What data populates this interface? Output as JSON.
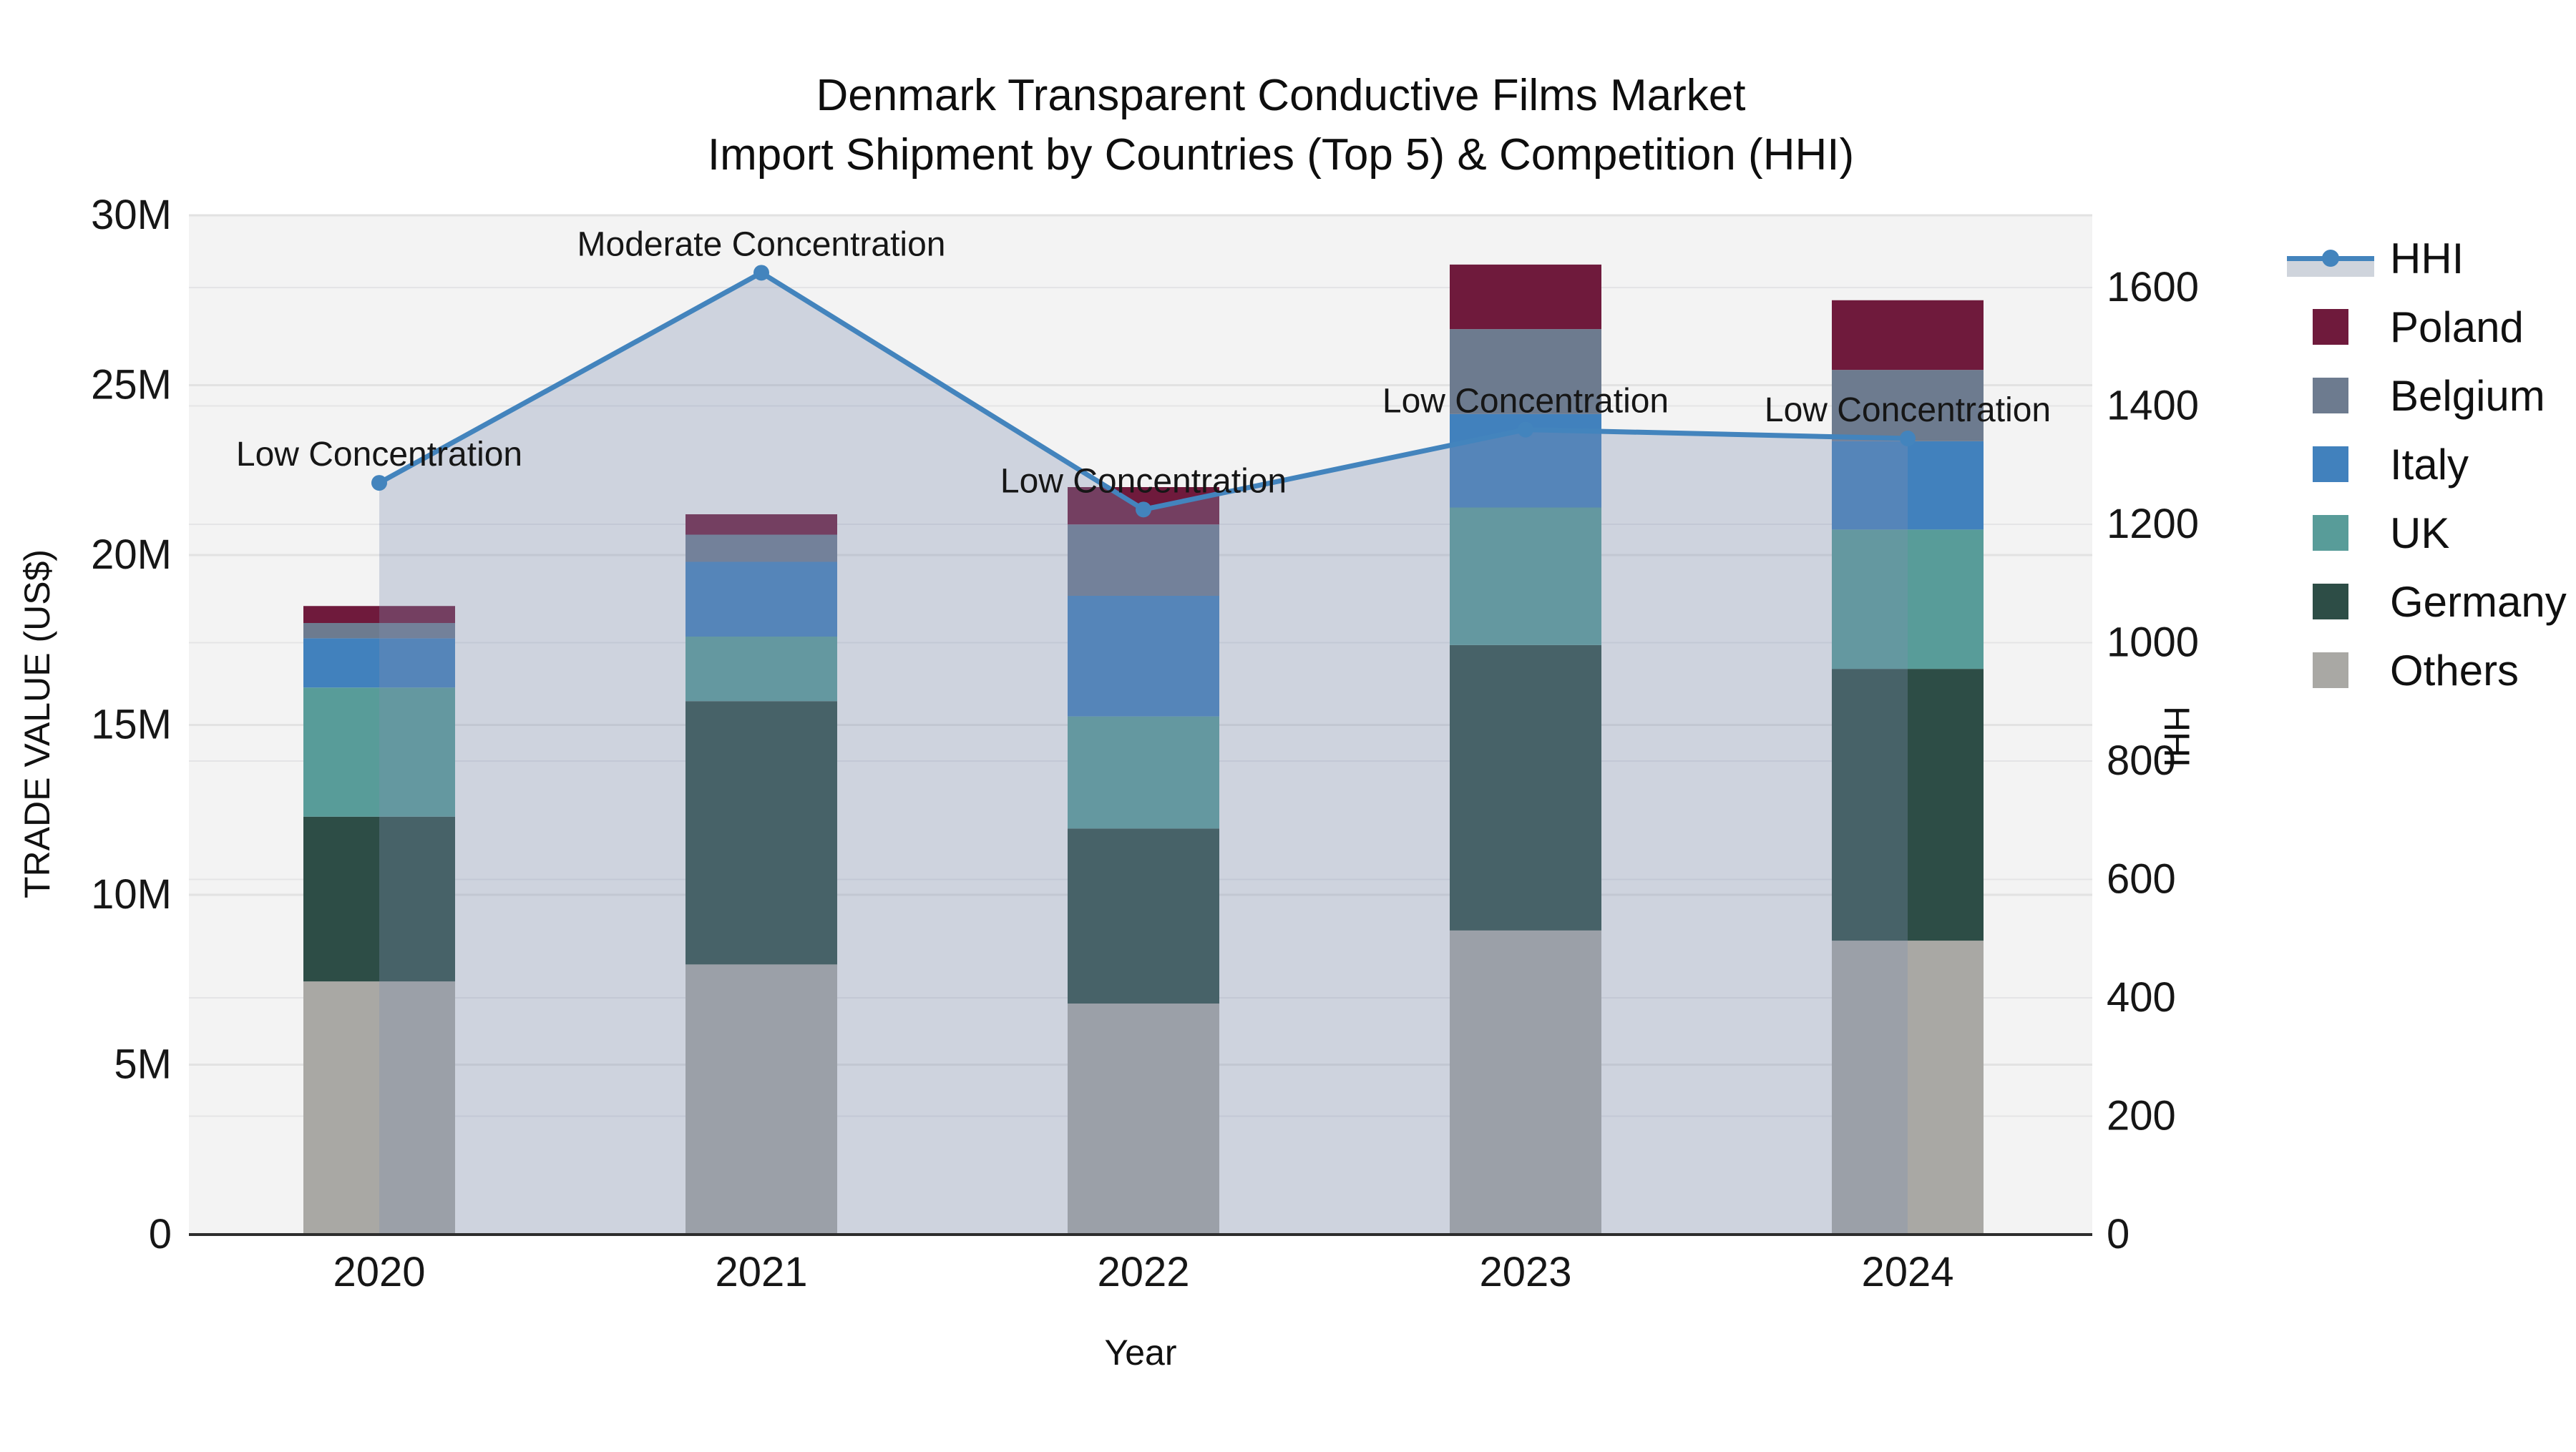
{
  "title": {
    "line1": "Denmark Transparent Conductive Films Market",
    "line2": "Import Shipment by Countries (Top 5) & Competition (HHI)"
  },
  "axes": {
    "x": {
      "title": "Year",
      "categories": [
        "2020",
        "2021",
        "2022",
        "2023",
        "2024"
      ]
    },
    "y_left": {
      "title": "TRADE VALUE (US$)",
      "ticks": [
        {
          "v": 0,
          "label": "0"
        },
        {
          "v": 5,
          "label": "5M"
        },
        {
          "v": 10,
          "label": "10M"
        },
        {
          "v": 15,
          "label": "15M"
        },
        {
          "v": 20,
          "label": "20M"
        },
        {
          "v": 25,
          "label": "25M"
        },
        {
          "v": 30,
          "label": "30M"
        }
      ]
    },
    "y_right": {
      "title": "HHI",
      "ticks": [
        {
          "v": 0,
          "label": "0"
        },
        {
          "v": 200,
          "label": "200"
        },
        {
          "v": 400,
          "label": "400"
        },
        {
          "v": 600,
          "label": "600"
        },
        {
          "v": 800,
          "label": "800"
        },
        {
          "v": 1000,
          "label": "1000"
        },
        {
          "v": 1200,
          "label": "1200"
        },
        {
          "v": 1400,
          "label": "1400"
        },
        {
          "v": 1600,
          "label": "1600"
        }
      ]
    }
  },
  "chart_data": {
    "type": "bar+line",
    "categories": [
      "2020",
      "2021",
      "2022",
      "2023",
      "2024"
    ],
    "bar_units": "millions USD",
    "stack_order_bottom_to_top": [
      "Others",
      "Germany",
      "UK",
      "Italy",
      "Belgium",
      "Poland"
    ],
    "series": [
      {
        "name": "Others",
        "color": "#a9a8a4",
        "values": [
          7.45,
          7.95,
          6.8,
          8.95,
          8.65
        ]
      },
      {
        "name": "Germany",
        "color": "#2d4d46",
        "values": [
          4.85,
          7.75,
          5.15,
          8.4,
          8.0
        ]
      },
      {
        "name": "UK",
        "color": "#589c99",
        "values": [
          3.8,
          1.9,
          3.3,
          4.05,
          4.1
        ]
      },
      {
        "name": "Italy",
        "color": "#4181bd",
        "values": [
          1.45,
          2.2,
          3.55,
          2.75,
          2.6
        ]
      },
      {
        "name": "Belgium",
        "color": "#6d7b8f",
        "values": [
          0.45,
          0.8,
          2.1,
          2.5,
          2.1
        ]
      },
      {
        "name": "Poland",
        "color": "#6f1a3c",
        "values": [
          0.5,
          0.6,
          1.1,
          1.9,
          2.05
        ]
      }
    ],
    "bar_totals": [
      18.5,
      21.2,
      22.0,
      28.55,
      27.5
    ],
    "hhi": {
      "name": "HHI",
      "color": "#4384bd",
      "area_color": "rgba(126,144,176,0.32)",
      "values": [
        1270,
        1625,
        1225,
        1360,
        1345
      ]
    },
    "annotations": [
      {
        "i": 0,
        "text": "Low Concentration"
      },
      {
        "i": 1,
        "text": "Moderate Concentration"
      },
      {
        "i": 2,
        "text": "Low Concentration"
      },
      {
        "i": 3,
        "text": "Low Concentration"
      },
      {
        "i": 4,
        "text": "Low Concentration"
      }
    ],
    "ylabel": "TRADE VALUE (US$)",
    "ylabel_right": "HHI",
    "xlabel": "Year",
    "ylim_left": [
      0,
      30
    ],
    "ylim_right": [
      0,
      1600
    ],
    "grid": true,
    "legend_position": "right"
  },
  "legend": {
    "items": [
      {
        "label": "HHI",
        "type": "line",
        "color": "#4384bd"
      },
      {
        "label": "Poland",
        "type": "swatch",
        "color": "#6f1a3c"
      },
      {
        "label": "Belgium",
        "type": "swatch",
        "color": "#6d7b8f"
      },
      {
        "label": "Italy",
        "type": "swatch",
        "color": "#4181bd"
      },
      {
        "label": "UK",
        "type": "swatch",
        "color": "#589c99"
      },
      {
        "label": "Germany",
        "type": "swatch",
        "color": "#2d4d46"
      },
      {
        "label": "Others",
        "type": "swatch",
        "color": "#a9a8a4"
      }
    ]
  }
}
